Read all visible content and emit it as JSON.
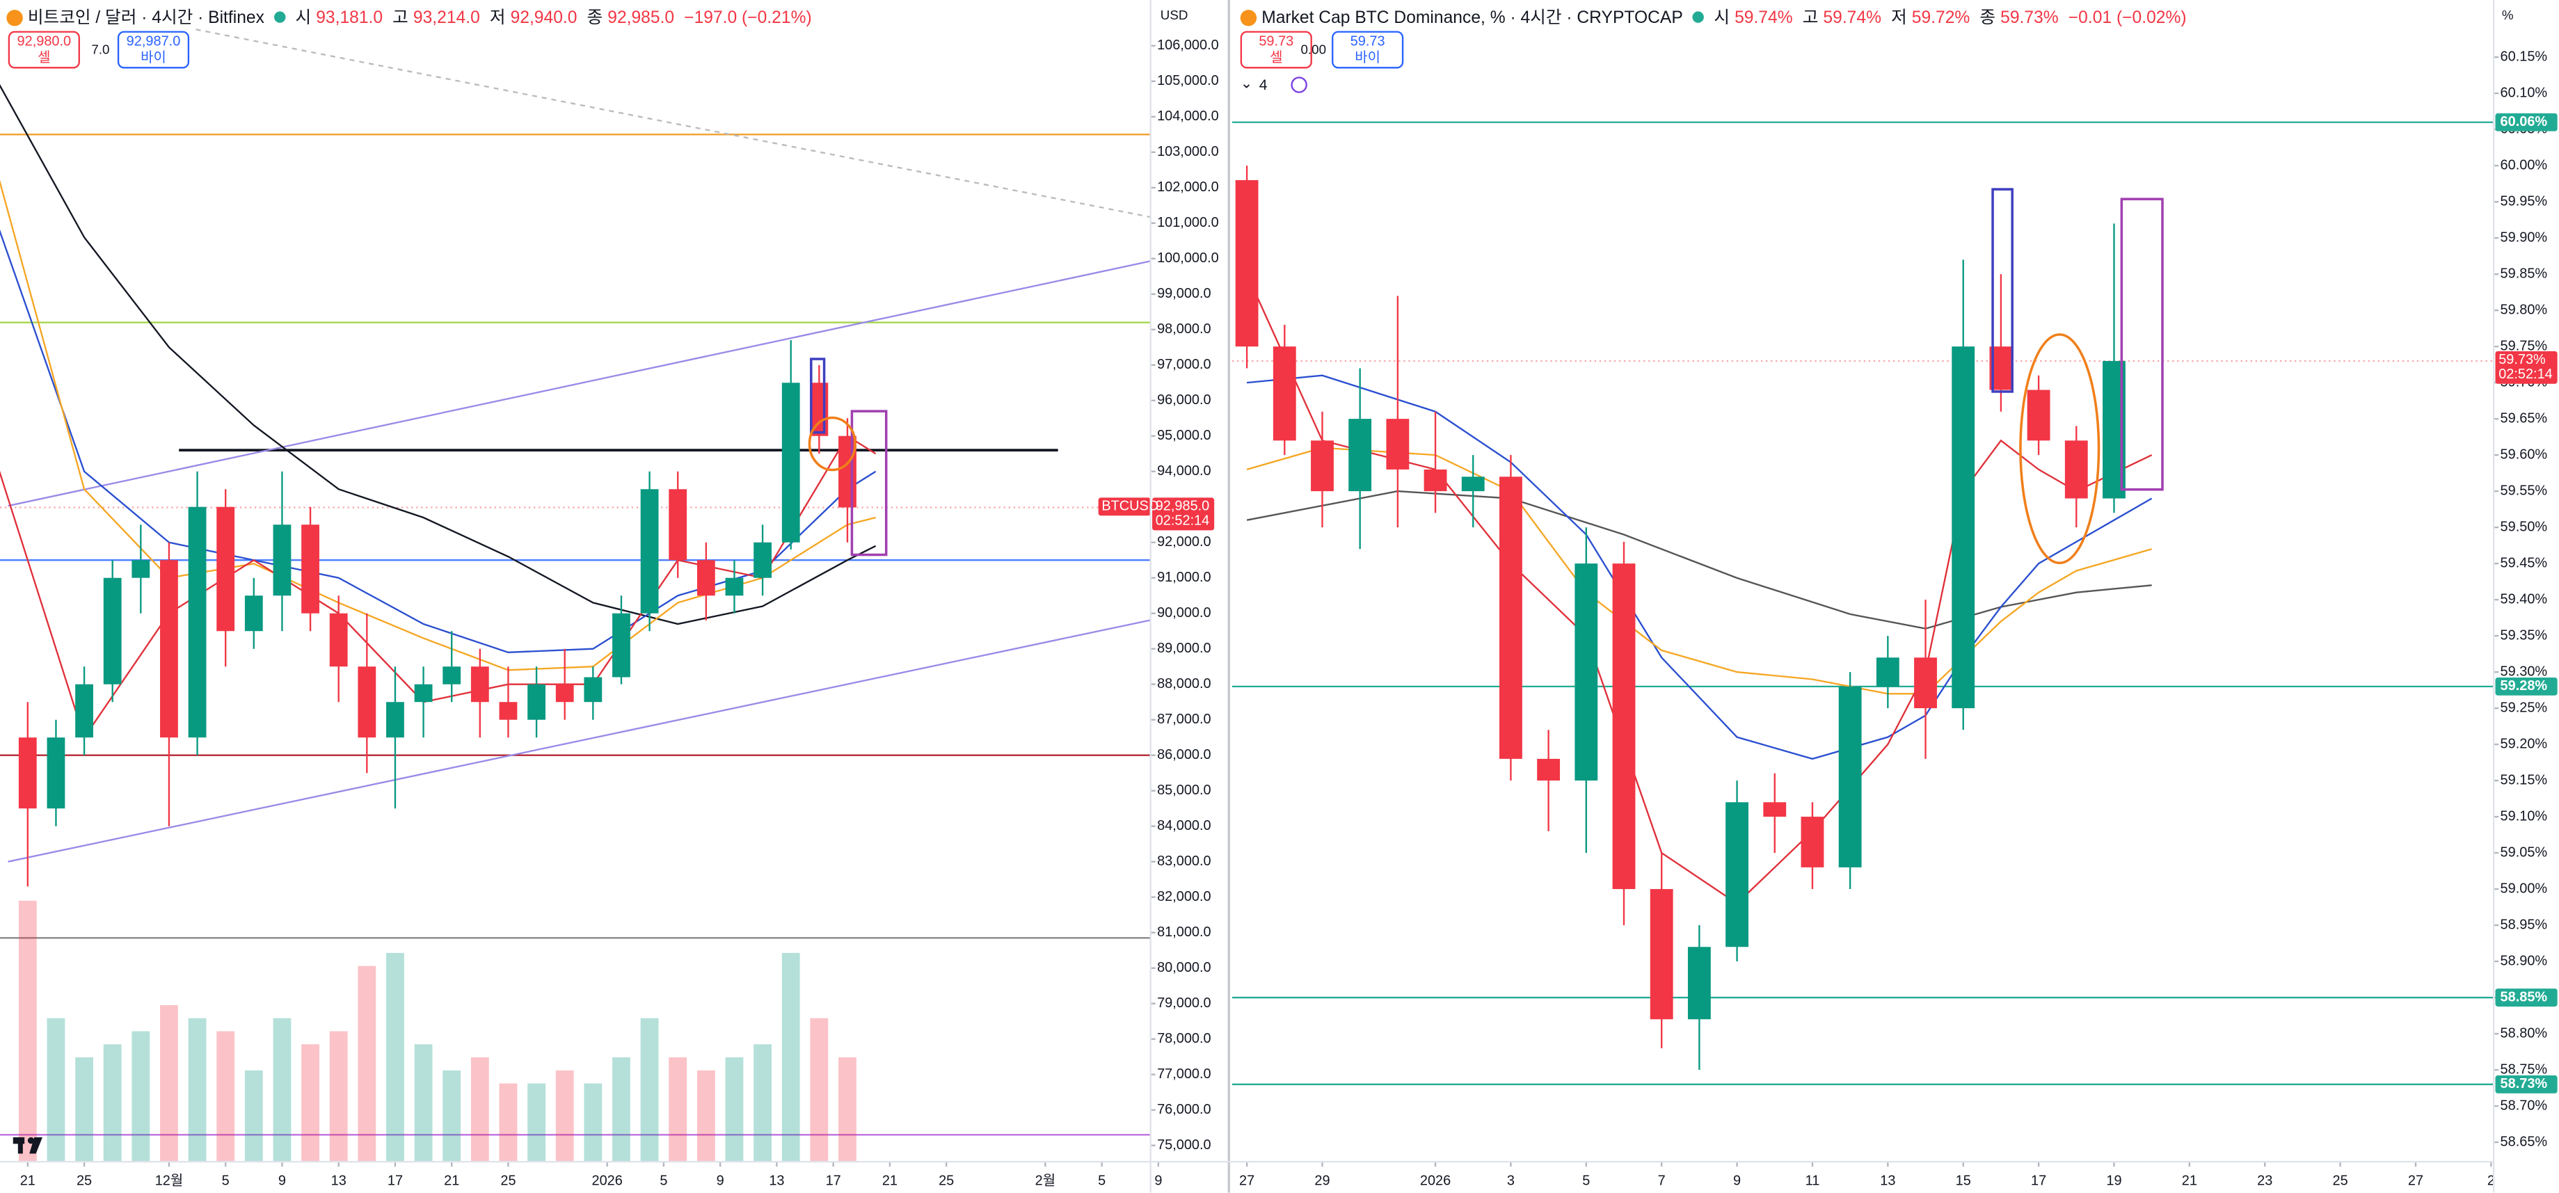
{
  "chart_data": [
    {
      "type": "candlestick",
      "title": "비트코인 / 달러 · 4시간 · Bitfinex",
      "ohlc": [
        {
          "label": "시",
          "value": "93,181.0"
        },
        {
          "label": "고",
          "value": "93,214.0"
        },
        {
          "label": "저",
          "value": "92,940.0"
        },
        {
          "label": "종",
          "value": "92,985.0"
        }
      ],
      "change": "−197.0 (−0.21%)",
      "sell": {
        "price": "92,980.0",
        "label": "셀"
      },
      "spread": "7.0",
      "buy": {
        "price": "92,987.0",
        "label": "바이"
      },
      "axis_unit": "USD",
      "symbol_tag": "BTCUSD",
      "last_label": "92,985.0",
      "countdown": "02:52:14",
      "up_color": "#089981",
      "down_color": "#f23645",
      "xlim": [
        -1.96,
        79.45
      ],
      "ylim": [
        74540,
        107290
      ],
      "xticks": [
        {
          "value": 0,
          "label": "21"
        },
        {
          "value": 4,
          "label": "25"
        },
        {
          "value": 10,
          "label": "12월"
        },
        {
          "value": 14,
          "label": "5"
        },
        {
          "value": 18,
          "label": "9"
        },
        {
          "value": 22,
          "label": "13"
        },
        {
          "value": 26,
          "label": "17"
        },
        {
          "value": 30,
          "label": "21"
        },
        {
          "value": 34,
          "label": "25"
        },
        {
          "value": 41,
          "label": "2026"
        },
        {
          "value": 45,
          "label": "5"
        },
        {
          "value": 49,
          "label": "9"
        },
        {
          "value": 53,
          "label": "13"
        },
        {
          "value": 57,
          "label": "17"
        },
        {
          "value": 61,
          "label": "21"
        },
        {
          "value": 65,
          "label": "25"
        },
        {
          "value": 72,
          "label": "2월"
        },
        {
          "value": 76,
          "label": "5"
        },
        {
          "value": 80,
          "label": "9"
        }
      ],
      "yticks": [
        {
          "value": 75000,
          "label": "75,000.0"
        },
        {
          "value": 76000,
          "label": "76,000.0"
        },
        {
          "value": 77000,
          "label": "77,000.0"
        },
        {
          "value": 78000,
          "label": "78,000.0"
        },
        {
          "value": 79000,
          "label": "79,000.0"
        },
        {
          "value": 80000,
          "label": "80,000.0"
        },
        {
          "value": 81000,
          "label": "81,000.0"
        },
        {
          "value": 82000,
          "label": "82,000.0"
        },
        {
          "value": 83000,
          "label": "83,000.0"
        },
        {
          "value": 84000,
          "label": "84,000.0"
        },
        {
          "value": 85000,
          "label": "85,000.0"
        },
        {
          "value": 86000,
          "label": "86,000.0"
        },
        {
          "value": 87000,
          "label": "87,000.0"
        },
        {
          "value": 88000,
          "label": "88,000.0"
        },
        {
          "value": 89000,
          "label": "89,000.0"
        },
        {
          "value": 90000,
          "label": "90,000.0"
        },
        {
          "value": 91000,
          "label": "91,000.0"
        },
        {
          "value": 92000,
          "label": "92,000.0"
        },
        {
          "value": 93000,
          "label": "93,000.0"
        },
        {
          "value": 94000,
          "label": "94,000.0"
        },
        {
          "value": 95000,
          "label": "95,000.0"
        },
        {
          "value": 96000,
          "label": "96,000.0"
        },
        {
          "value": 97000,
          "label": "97,000.0"
        },
        {
          "value": 98000,
          "label": "98,000.0"
        },
        {
          "value": 99000,
          "label": "99,000.0"
        },
        {
          "value": 100000,
          "label": "100,000.0"
        },
        {
          "value": 101000,
          "label": "101,000.0"
        },
        {
          "value": 102000,
          "label": "102,000.0"
        },
        {
          "value": 103000,
          "label": "103,000.0"
        },
        {
          "value": 104000,
          "label": "104,000.0"
        },
        {
          "value": 105000,
          "label": "105,000.0"
        },
        {
          "value": 106000,
          "label": "106,000.0"
        }
      ],
      "x": [
        0,
        2,
        4,
        6,
        8,
        10,
        12,
        14,
        16,
        18,
        20,
        22,
        24,
        26,
        28,
        30,
        32,
        34,
        36,
        38,
        40,
        42,
        44,
        46,
        48,
        50,
        52,
        54,
        56,
        58
      ],
      "open": [
        86500,
        84500,
        86500,
        88000,
        91000,
        91500,
        86500,
        93000,
        89500,
        90500,
        92500,
        90000,
        88500,
        86500,
        87500,
        88000,
        88500,
        87500,
        87000,
        88000,
        87500,
        88200,
        90000,
        93500,
        91500,
        90500,
        91000,
        92000,
        96500,
        95000
      ],
      "high": [
        87500,
        87000,
        88500,
        91500,
        92500,
        92000,
        94000,
        93500,
        91000,
        94000,
        93000,
        90500,
        90000,
        88500,
        88500,
        89500,
        89000,
        88500,
        88500,
        89000,
        88500,
        90500,
        94000,
        94000,
        92000,
        91500,
        92500,
        97700,
        97000,
        95500
      ],
      "low": [
        82300,
        84000,
        86000,
        87500,
        90000,
        84000,
        86000,
        88500,
        89000,
        89500,
        89500,
        87500,
        85500,
        84500,
        86500,
        87500,
        86500,
        86500,
        86500,
        87000,
        87000,
        88000,
        89500,
        91000,
        89800,
        90000,
        90500,
        91800,
        94500,
        92000
      ],
      "close": [
        84500,
        86500,
        88000,
        91000,
        91500,
        86500,
        93000,
        89500,
        90500,
        92500,
        90000,
        88500,
        86500,
        87500,
        88000,
        88500,
        87500,
        87000,
        88000,
        87500,
        88200,
        90000,
        93500,
        91500,
        90500,
        91000,
        92000,
        96500,
        95000,
        92985
      ],
      "volume": [
        100,
        55,
        40,
        45,
        50,
        60,
        55,
        50,
        35,
        55,
        45,
        50,
        75,
        80,
        45,
        35,
        40,
        30,
        30,
        35,
        30,
        40,
        55,
        40,
        35,
        40,
        45,
        80,
        55,
        40
      ],
      "ma": [
        {
          "color": "#131722",
          "x": [
            -2,
            4,
            10,
            16,
            22,
            28,
            34,
            40,
            46,
            52,
            58,
            60
          ],
          "values": [
            104900,
            100600,
            97500,
            95300,
            93500,
            92700,
            91600,
            90300,
            89700,
            90200,
            91500,
            91900
          ]
        },
        {
          "color": "#2a4fd0",
          "x": [
            -2,
            4,
            10,
            16,
            22,
            28,
            34,
            40,
            46,
            52,
            58,
            60
          ],
          "values": [
            100800,
            94000,
            92000,
            91500,
            91000,
            89700,
            88900,
            89000,
            90500,
            91200,
            93500,
            94000
          ]
        },
        {
          "color": "#f5a623",
          "x": [
            -2,
            4,
            10,
            16,
            22,
            28,
            34,
            40,
            46,
            52,
            58,
            60
          ],
          "values": [
            102200,
            93500,
            91000,
            91400,
            90300,
            89300,
            88400,
            88500,
            90300,
            91000,
            92500,
            92700
          ]
        },
        {
          "color": "#e0303a",
          "x": [
            -2,
            4,
            10,
            16,
            22,
            28,
            34,
            40,
            46,
            52,
            58,
            60
          ],
          "values": [
            94000,
            86500,
            90000,
            91500,
            90000,
            87500,
            88000,
            88000,
            91500,
            91000,
            95000,
            94500
          ]
        }
      ],
      "levels": [
        {
          "value": 103500,
          "color": "#f0a030"
        },
        {
          "value": 98200,
          "color": "#a5d64a"
        },
        {
          "value": 94600,
          "color": "#131722",
          "xrange": [
            10.7,
            72.9
          ]
        },
        {
          "value": 91500,
          "color": "#4a7dff"
        },
        {
          "value": 86000,
          "color": "#b22833"
        },
        {
          "value": 80850,
          "color": "#888888"
        },
        {
          "value": 75300,
          "color": "#c070e0"
        }
      ],
      "trendlines": [
        {
          "color": "#9a8ae8",
          "x": [
            -1.39,
            79.45
          ],
          "values": [
            93030,
            99930
          ]
        },
        {
          "color": "#9a8ae8",
          "x": [
            -1.39,
            79.45
          ],
          "values": [
            83000,
            89810
          ]
        },
        {
          "color": "#bbbbbb",
          "dashed": true,
          "x": [
            11.9,
            79.45
          ],
          "values": [
            106460,
            101170
          ]
        }
      ]
    },
    {
      "type": "candlestick",
      "title": "Market Cap BTC Dominance, % · 4시간 · CRYPTOCAP",
      "ohlc": [
        {
          "label": "시",
          "value": "59.74%"
        },
        {
          "label": "고",
          "value": "59.74%"
        },
        {
          "label": "저",
          "value": "59.72%"
        },
        {
          "label": "종",
          "value": "59.73%"
        }
      ],
      "change": "−0.01 (−0.02%)",
      "sell": {
        "price": "59.73",
        "label": "셀"
      },
      "spread": "0.00",
      "buy": {
        "price": "59.73",
        "label": "바이"
      },
      "axis_unit": "%",
      "indicators_count": "4",
      "last_label": "59.73%",
      "countdown": "02:52:14",
      "up_color": "#089981",
      "down_color": "#f23645",
      "xlim": [
        -0.39,
        33.07
      ],
      "ylim": [
        58.623,
        60.229
      ],
      "xticks": [
        {
          "value": 0,
          "label": "27"
        },
        {
          "value": 2,
          "label": "29"
        },
        {
          "value": 5,
          "label": "2026"
        },
        {
          "value": 7,
          "label": "3"
        },
        {
          "value": 9,
          "label": "5"
        },
        {
          "value": 11,
          "label": "7"
        },
        {
          "value": 13,
          "label": "9"
        },
        {
          "value": 15,
          "label": "11"
        },
        {
          "value": 17,
          "label": "13"
        },
        {
          "value": 19,
          "label": "15"
        },
        {
          "value": 21,
          "label": "17"
        },
        {
          "value": 23,
          "label": "19"
        },
        {
          "value": 25,
          "label": "21"
        },
        {
          "value": 27,
          "label": "23"
        },
        {
          "value": 29,
          "label": "25"
        },
        {
          "value": 31,
          "label": "27"
        },
        {
          "value": 33,
          "label": "2"
        }
      ],
      "yticks": [
        {
          "value": 58.65,
          "label": "58.65%"
        },
        {
          "value": 58.7,
          "label": "58.70%"
        },
        {
          "value": 58.75,
          "label": "58.75%"
        },
        {
          "value": 58.8,
          "label": "58.80%"
        },
        {
          "value": 58.85,
          "label": "58.85%"
        },
        {
          "value": 58.9,
          "label": "58.90%"
        },
        {
          "value": 58.95,
          "label": "58.95%"
        },
        {
          "value": 59,
          "label": "59.00%"
        },
        {
          "value": 59.05,
          "label": "59.05%"
        },
        {
          "value": 59.1,
          "label": "59.10%"
        },
        {
          "value": 59.15,
          "label": "59.15%"
        },
        {
          "value": 59.2,
          "label": "59.20%"
        },
        {
          "value": 59.25,
          "label": "59.25%"
        },
        {
          "value": 59.3,
          "label": "59.30%"
        },
        {
          "value": 59.35,
          "label": "59.35%"
        },
        {
          "value": 59.4,
          "label": "59.40%"
        },
        {
          "value": 59.45,
          "label": "59.45%"
        },
        {
          "value": 59.5,
          "label": "59.50%"
        },
        {
          "value": 59.55,
          "label": "59.55%"
        },
        {
          "value": 59.6,
          "label": "59.60%"
        },
        {
          "value": 59.65,
          "label": "59.65%"
        },
        {
          "value": 59.7,
          "label": "59.70%"
        },
        {
          "value": 59.75,
          "label": "59.75%"
        },
        {
          "value": 59.8,
          "label": "59.80%"
        },
        {
          "value": 59.85,
          "label": "59.85%"
        },
        {
          "value": 59.9,
          "label": "59.90%"
        },
        {
          "value": 59.95,
          "label": "59.95%"
        },
        {
          "value": 60,
          "label": "60.00%"
        },
        {
          "value": 60.05,
          "label": "60.05%"
        },
        {
          "value": 60.1,
          "label": "60.10%"
        },
        {
          "value": 60.15,
          "label": "60.15%"
        }
      ],
      "x": [
        0,
        1,
        2,
        3,
        4,
        5,
        6,
        7,
        8,
        9,
        10,
        11,
        12,
        13,
        14,
        15,
        16,
        17,
        18,
        19,
        20,
        21,
        22,
        23
      ],
      "open": [
        59.98,
        59.75,
        59.62,
        59.55,
        59.65,
        59.58,
        59.55,
        59.57,
        59.18,
        59.15,
        59.45,
        59.0,
        58.82,
        58.92,
        59.12,
        59.1,
        59.03,
        59.28,
        59.32,
        59.25,
        59.75,
        59.69,
        59.62,
        59.54
      ],
      "high": [
        60.0,
        59.78,
        59.66,
        59.72,
        59.82,
        59.66,
        59.6,
        59.6,
        59.22,
        59.5,
        59.48,
        59.05,
        58.95,
        59.15,
        59.16,
        59.12,
        59.3,
        59.35,
        59.4,
        59.87,
        59.85,
        59.71,
        59.64,
        59.92
      ],
      "low": [
        59.72,
        59.6,
        59.5,
        59.47,
        59.5,
        59.52,
        59.5,
        59.15,
        59.08,
        59.05,
        58.95,
        58.78,
        58.75,
        58.9,
        59.05,
        59.0,
        59.0,
        59.25,
        59.18,
        59.22,
        59.66,
        59.6,
        59.5,
        59.52
      ],
      "close": [
        59.75,
        59.62,
        59.55,
        59.65,
        59.58,
        59.55,
        59.57,
        59.18,
        59.15,
        59.45,
        59.0,
        58.82,
        58.92,
        59.12,
        59.1,
        59.03,
        59.28,
        59.32,
        59.25,
        59.75,
        59.69,
        59.62,
        59.54,
        59.73
      ],
      "ma": [
        {
          "color": "#555555",
          "x": [
            0,
            4,
            7,
            10,
            13,
            16,
            18,
            20,
            22,
            24
          ],
          "values": [
            59.51,
            59.55,
            59.54,
            59.49,
            59.43,
            59.38,
            59.36,
            59.39,
            59.41,
            59.42
          ]
        },
        {
          "color": "#2a4fd0",
          "x": [
            0,
            2,
            5,
            7,
            9,
            11,
            13,
            15,
            17,
            18,
            19,
            20,
            21,
            22,
            23,
            24
          ],
          "values": [
            59.7,
            59.71,
            59.66,
            59.59,
            59.49,
            59.32,
            59.21,
            59.18,
            59.21,
            59.24,
            59.32,
            59.39,
            59.45,
            59.48,
            59.51,
            59.54
          ]
        },
        {
          "color": "#f5a623",
          "x": [
            0,
            2,
            5,
            7,
            9,
            11,
            13,
            15,
            17,
            18,
            19,
            20,
            21,
            22,
            24
          ],
          "values": [
            59.58,
            59.61,
            59.6,
            59.55,
            59.41,
            59.33,
            59.3,
            59.29,
            59.27,
            59.27,
            59.32,
            59.37,
            59.41,
            59.44,
            59.47
          ]
        },
        {
          "color": "#e0303a",
          "x": [
            0,
            2,
            5,
            7,
            9,
            11,
            13,
            15,
            17,
            18,
            19,
            20,
            21,
            22,
            24
          ],
          "values": [
            59.85,
            59.62,
            59.58,
            59.45,
            59.35,
            59.05,
            58.98,
            59.08,
            59.2,
            59.3,
            59.55,
            59.62,
            59.58,
            59.55,
            59.6
          ]
        }
      ],
      "levels": [
        {
          "value": 60.06,
          "label": "60.06%",
          "color": "#22ab94"
        },
        {
          "value": 59.28,
          "label": "59.28%",
          "color": "#22ab94"
        },
        {
          "value": 58.85,
          "label": "58.85%",
          "color": "#22ab94"
        },
        {
          "value": 58.73,
          "label": "58.73%",
          "color": "#22ab94"
        }
      ]
    }
  ]
}
